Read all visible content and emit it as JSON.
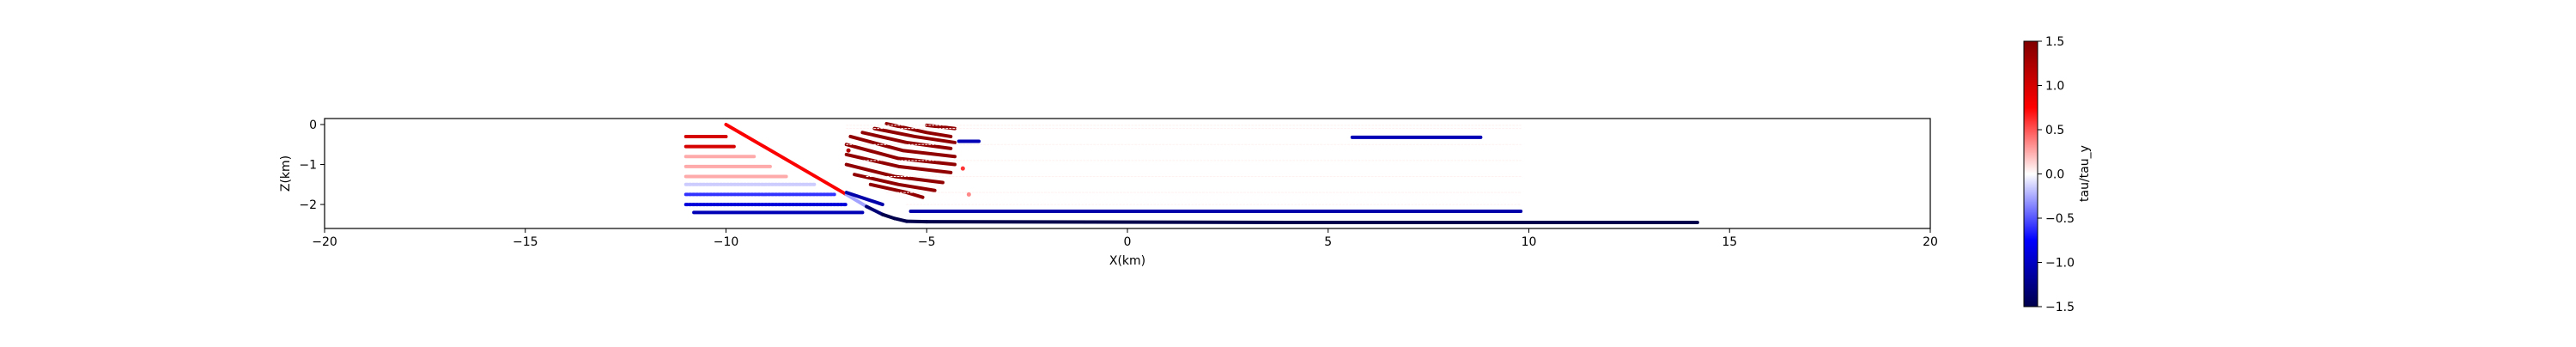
{
  "chart_data": {
    "type": "scatter",
    "title": "",
    "xlabel": "X(km)",
    "ylabel": "Z(km)",
    "xlim": [
      -20,
      20
    ],
    "ylim": [
      -2.6,
      0.15
    ],
    "xticks": [
      -20,
      -15,
      -10,
      -5,
      0,
      5,
      10,
      15,
      20
    ],
    "yticks": [
      0,
      -1,
      -2
    ],
    "grid": false,
    "colorbar": {
      "label": "tau/tau_y",
      "range": [
        -1.5,
        1.5
      ],
      "ticks": [
        1.5,
        1.0,
        0.5,
        0.0,
        -0.5,
        -1.0,
        -1.5
      ],
      "colormap": "seismic",
      "stops": [
        "#00004c",
        "#0000ff",
        "#ffffff",
        "#ff0000",
        "#800000"
      ]
    },
    "series": [
      {
        "kind": "fault",
        "x": [
          -10.0,
          -7.0,
          -6.5,
          -6.1,
          -5.8,
          -5.5,
          -5.0,
          4.0,
          14.2
        ],
        "y": [
          0.0,
          -1.75,
          -2.05,
          -2.25,
          -2.35,
          -2.42,
          -2.43,
          -2.45,
          -2.45
        ],
        "value_start": 1.3,
        "value_end": -1.5
      },
      {
        "kind": "segments",
        "value": 1.4,
        "items": [
          {
            "x": [
              -5.0,
              -4.3
            ],
            "y": [
              -0.02,
              -0.1
            ]
          },
          {
            "x": [
              -6.0,
              -5.0,
              -4.4
            ],
            "y": [
              0.02,
              -0.2,
              -0.3
            ]
          },
          {
            "x": [
              -6.3,
              -5.3,
              -4.3
            ],
            "y": [
              -0.1,
              -0.3,
              -0.45
            ]
          },
          {
            "x": [
              -6.6,
              -5.5,
              -4.4
            ],
            "y": [
              -0.2,
              -0.45,
              -0.6
            ]
          },
          {
            "x": [
              -6.9,
              -5.6,
              -4.3
            ],
            "y": [
              -0.3,
              -0.65,
              -0.8
            ]
          },
          {
            "x": [
              -7.0,
              -5.7,
              -4.3
            ],
            "y": [
              -0.5,
              -0.85,
              -1.0
            ]
          },
          {
            "x": [
              -7.0,
              -5.7,
              -4.4
            ],
            "y": [
              -0.75,
              -1.05,
              -1.2
            ]
          },
          {
            "x": [
              -7.0,
              -5.8,
              -4.6
            ],
            "y": [
              -1.0,
              -1.3,
              -1.45
            ]
          },
          {
            "x": [
              -6.8,
              -5.7,
              -4.8
            ],
            "y": [
              -1.25,
              -1.5,
              -1.65
            ]
          },
          {
            "x": [
              -6.4,
              -5.5,
              -5.1
            ],
            "y": [
              -1.5,
              -1.7,
              -1.82
            ]
          }
        ]
      },
      {
        "kind": "segments",
        "value": 1.0,
        "items": [
          {
            "x": [
              -11.0,
              -10.0
            ],
            "y": [
              -0.3,
              -0.3
            ]
          },
          {
            "x": [
              -11.0,
              -9.8
            ],
            "y": [
              -0.55,
              -0.55
            ]
          }
        ]
      },
      {
        "kind": "segments",
        "value": 0.25,
        "items": [
          {
            "x": [
              -11.0,
              -9.3
            ],
            "y": [
              -0.8,
              -0.8
            ]
          },
          {
            "x": [
              -11.0,
              -8.9
            ],
            "y": [
              -1.05,
              -1.05
            ]
          },
          {
            "x": [
              -11.0,
              -8.5
            ],
            "y": [
              -1.3,
              -1.3
            ]
          }
        ]
      },
      {
        "kind": "segments",
        "value": -0.15,
        "items": [
          {
            "x": [
              -11.0,
              -7.8
            ],
            "y": [
              -1.5,
              -1.5
            ]
          }
        ]
      },
      {
        "kind": "segments",
        "value": -0.6,
        "items": [
          {
            "x": [
              -11.0,
              -7.3
            ],
            "y": [
              -1.75,
              -1.75
            ]
          }
        ]
      },
      {
        "kind": "segments",
        "value": -0.9,
        "items": [
          {
            "x": [
              -11.0,
              -7.0
            ],
            "y": [
              -2.0,
              -2.0
            ]
          }
        ]
      },
      {
        "kind": "segments",
        "value": -1.05,
        "items": [
          {
            "x": [
              -10.8,
              -6.6
            ],
            "y": [
              -2.2,
              -2.2
            ]
          },
          {
            "x": [
              -4.2,
              -3.7
            ],
            "y": [
              -0.42,
              -0.42
            ]
          },
          {
            "x": [
              5.6,
              8.8
            ],
            "y": [
              -0.32,
              -0.32
            ]
          }
        ]
      },
      {
        "kind": "segments",
        "value": -1.1,
        "items": [
          {
            "x": [
              -7.0,
              -6.1
            ],
            "y": [
              -1.7,
              -2.0
            ]
          },
          {
            "x": [
              -5.4,
              9.8
            ],
            "y": [
              -2.17,
              -2.17
            ]
          }
        ]
      },
      {
        "kind": "segments",
        "value": 0.04,
        "items": [
          {
            "x": [
              -7.0,
              9.8
            ],
            "y": [
              -0.02,
              -0.02
            ]
          },
          {
            "x": [
              -7.0,
              9.8
            ],
            "y": [
              -0.1,
              -0.1
            ]
          },
          {
            "x": [
              -7.0,
              9.8
            ],
            "y": [
              -0.5,
              -0.5
            ]
          },
          {
            "x": [
              -7.0,
              9.8
            ],
            "y": [
              -0.9,
              -0.9
            ]
          },
          {
            "x": [
              -6.5,
              9.8
            ],
            "y": [
              -1.3,
              -1.3
            ]
          },
          {
            "x": [
              -6.0,
              9.8
            ],
            "y": [
              -1.7,
              -1.7
            ]
          },
          {
            "x": [
              -5.5,
              9.8
            ],
            "y": [
              -2.0,
              -2.0
            ]
          }
        ]
      },
      {
        "kind": "points",
        "items": [
          {
            "x": -6.95,
            "y": -0.65,
            "value": 1.2
          },
          {
            "x": -4.1,
            "y": -1.1,
            "value": 0.6
          },
          {
            "x": -3.95,
            "y": -1.75,
            "value": 0.35
          }
        ]
      }
    ]
  }
}
